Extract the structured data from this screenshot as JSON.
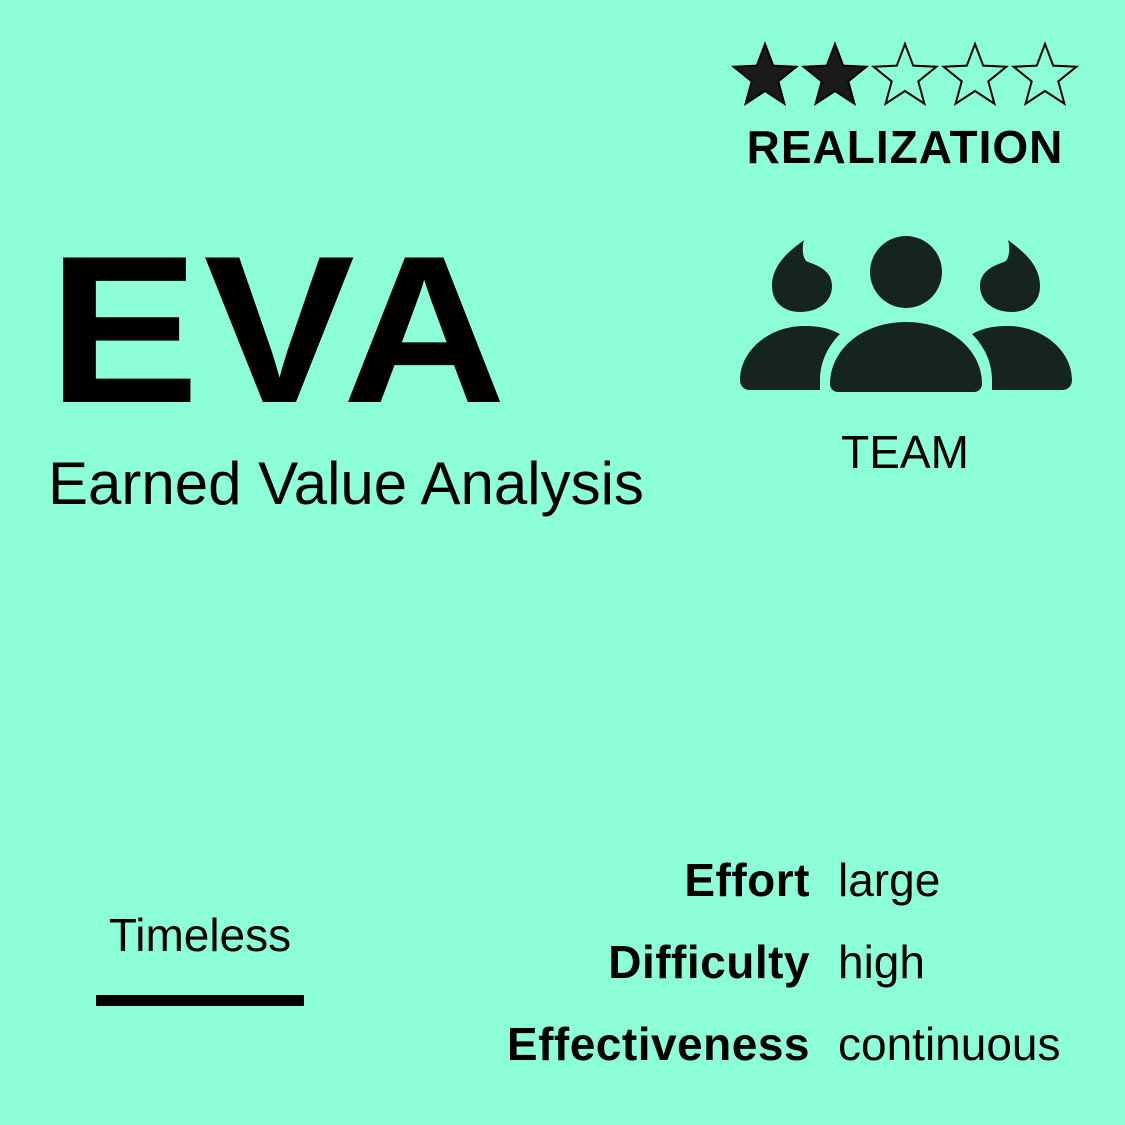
{
  "rating": {
    "value": 2,
    "max": 5,
    "label": "REALIZATION",
    "star_filled_color": "#1a1a1a",
    "star_empty_color": "#8cffd8"
  },
  "title": {
    "acronym": "EVA",
    "full_name": "Earned Value Analysis"
  },
  "audience": {
    "icon": "team-icon",
    "label": "TEAM",
    "icon_color": "#15241f"
  },
  "timeless": {
    "label": "Timeless"
  },
  "attributes": [
    {
      "key": "Effort",
      "value": "large"
    },
    {
      "key": "Difficulty",
      "value": "high"
    },
    {
      "key": "Effectiveness",
      "value": "continuous"
    }
  ],
  "colors": {
    "background": "#8cffd8",
    "text": "#000000"
  }
}
